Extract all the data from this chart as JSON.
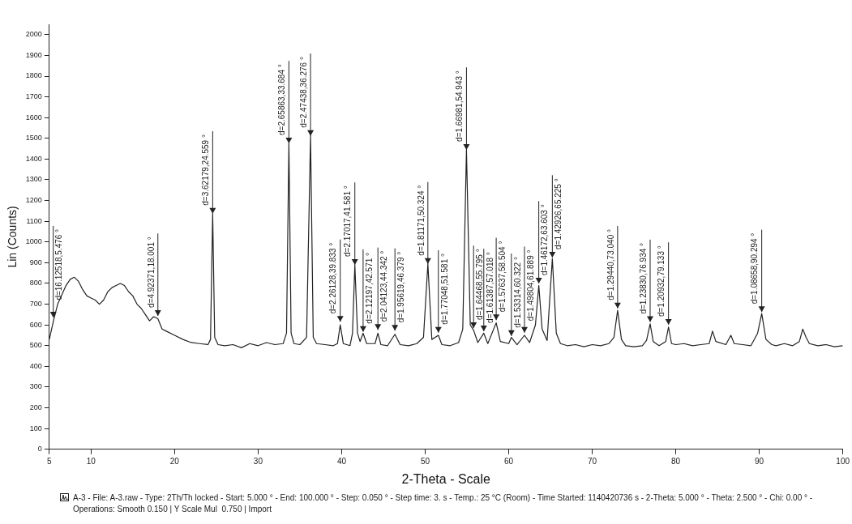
{
  "chart_data": {
    "type": "line",
    "xlabel": "2-Theta - Scale",
    "ylabel": "Lin (Counts)",
    "xlim": [
      5,
      100
    ],
    "xticks": [
      5,
      10,
      20,
      30,
      40,
      50,
      60,
      70,
      80,
      90,
      100
    ],
    "ylim": [
      0,
      2050
    ],
    "yticks": [
      0,
      100,
      200,
      300,
      400,
      500,
      600,
      700,
      800,
      900,
      1000,
      1100,
      1200,
      1300,
      1400,
      1500,
      1600,
      1700,
      1800,
      1900,
      2000
    ],
    "grid": false,
    "legend": false,
    "marker": "none",
    "line_style": "solid",
    "series": [
      {
        "color": "#222222",
        "x": [
          5,
          5.5,
          6,
          7,
          7.5,
          8,
          8.5,
          9,
          9.5,
          10,
          10.5,
          11,
          11.5,
          12,
          12.5,
          13,
          13.5,
          14,
          14.5,
          15,
          15.5,
          16,
          16.5,
          17,
          17.5,
          18,
          18.5,
          19,
          20,
          21,
          22,
          23,
          24,
          24.3,
          24.559,
          24.8,
          25.2,
          26,
          27,
          28,
          29,
          30,
          31,
          32,
          33,
          33.4,
          33.684,
          33.95,
          34.3,
          35,
          35.8,
          36.276,
          36.6,
          37,
          38,
          39,
          39.5,
          39.833,
          40.2,
          41,
          41.3,
          41.581,
          41.9,
          42.2,
          42.571,
          43,
          44,
          44.342,
          44.7,
          45.5,
          46.379,
          47,
          48,
          49,
          49.8,
          50.324,
          50.8,
          51.581,
          52,
          53,
          54,
          54.5,
          54.943,
          55.4,
          55.795,
          56.3,
          57.018,
          57.5,
          58.504,
          59,
          60,
          60.322,
          61,
          61.889,
          62.5,
          63.2,
          63.603,
          64,
          64.6,
          65.225,
          65.7,
          66.2,
          67,
          68,
          69,
          70,
          71,
          72,
          72.6,
          73.04,
          73.5,
          74,
          75,
          76,
          76.5,
          76.934,
          77.3,
          78,
          78.8,
          79.133,
          79.5,
          80,
          81,
          82,
          83,
          84,
          84.4,
          84.8,
          86,
          86.6,
          87,
          88,
          89,
          89.8,
          90.294,
          90.8,
          91.5,
          92,
          93,
          94,
          94.8,
          95.2,
          95.6,
          96,
          97,
          98,
          99,
          100
        ],
        "values": [
          530,
          620,
          700,
          790,
          820,
          830,
          810,
          770,
          740,
          730,
          720,
          700,
          720,
          760,
          780,
          790,
          800,
          790,
          760,
          740,
          700,
          680,
          650,
          620,
          640,
          630,
          580,
          570,
          550,
          530,
          515,
          510,
          505,
          530,
          1137,
          540,
          505,
          500,
          505,
          490,
          510,
          500,
          515,
          505,
          510,
          560,
          1476,
          560,
          510,
          505,
          540,
          1512,
          540,
          510,
          505,
          500,
          510,
          600,
          510,
          500,
          560,
          890,
          560,
          520,
          560,
          510,
          510,
          560,
          505,
          500,
          555,
          505,
          500,
          510,
          540,
          895,
          530,
          550,
          505,
          500,
          515,
          580,
          1445,
          600,
          575,
          515,
          560,
          510,
          610,
          520,
          510,
          540,
          505,
          550,
          515,
          600,
          790,
          580,
          525,
          920,
          560,
          510,
          500,
          505,
          495,
          505,
          500,
          510,
          540,
          670,
          530,
          500,
          495,
          500,
          525,
          605,
          520,
          500,
          520,
          590,
          510,
          505,
          510,
          500,
          505,
          510,
          570,
          520,
          505,
          550,
          510,
          505,
          500,
          560,
          655,
          530,
          505,
          500,
          510,
          500,
          520,
          580,
          540,
          510,
          500,
          505,
          495,
          500
        ]
      }
    ],
    "annotations": [
      {
        "text": "d=16.12518,5.476 °",
        "x": 5.476,
        "y": 636
      },
      {
        "text": "d=4.92371,18.001 °",
        "x": 18.001,
        "y": 644
      },
      {
        "text": "d=3.62179,24.559 °",
        "x": 24.559,
        "y": 1137
      },
      {
        "text": "d=2.65863,33.684 °",
        "x": 33.684,
        "y": 1476
      },
      {
        "text": "d=2.47438,36.276 °",
        "x": 36.276,
        "y": 1512
      },
      {
        "text": "d=2.26128,39.833 °",
        "x": 39.833,
        "y": 615
      },
      {
        "text": "d=2.17017,41.581 °",
        "x": 41.581,
        "y": 890
      },
      {
        "text": "d=2.12197,42.571 °",
        "x": 42.571,
        "y": 567
      },
      {
        "text": "d=2.04123,44.342 °",
        "x": 44.342,
        "y": 576
      },
      {
        "text": "d=1.95619,46.379 °",
        "x": 46.379,
        "y": 572
      },
      {
        "text": "d=1.81171,50.324 °",
        "x": 50.324,
        "y": 895
      },
      {
        "text": "d=1.77048,51.581 °",
        "x": 51.581,
        "y": 563
      },
      {
        "text": "d=1.66981,54.943 °",
        "x": 54.943,
        "y": 1445
      },
      {
        "text": "d=1.64468,55.795 °",
        "x": 55.795,
        "y": 585
      },
      {
        "text": "d=1.61387,57.018 °",
        "x": 57.018,
        "y": 570
      },
      {
        "text": "d=1.57637,58.504 °",
        "x": 58.504,
        "y": 623
      },
      {
        "text": "d=1.53314,60.322 °",
        "x": 60.322,
        "y": 547
      },
      {
        "text": "d=1.49804,61.889 °",
        "x": 61.889,
        "y": 563
      },
      {
        "text": "d=1.46172,63.603 °",
        "x": 63.603,
        "y": 800
      },
      {
        "text": "d=1.42926,65.225 °",
        "x": 65.225,
        "y": 925
      },
      {
        "text": "d=1.29440,73.040 °",
        "x": 73.04,
        "y": 680
      },
      {
        "text": "d=1.23830,76.934 °",
        "x": 76.934,
        "y": 614
      },
      {
        "text": "d=1.20932,79.133 °",
        "x": 79.133,
        "y": 601
      },
      {
        "text": "d=1.08658,90.294 °",
        "x": 90.294,
        "y": 662
      },
      "A-3 - File: A-3.raw - Type: 2Th/Th locked - Start: 5.000 ° - End: 100.000 ° - Step: 0.050 ° - Step time: 3. s - Temp.: 25 °C (Room) - Time Started: 1140420736 s - 2-Theta: 5.000 ° - Theta: 2.500 ° - Chi: 0.00 ° -",
      "Operations: Smooth 0.150 | Y Scale Mul  0.750 | Import"
    ]
  }
}
